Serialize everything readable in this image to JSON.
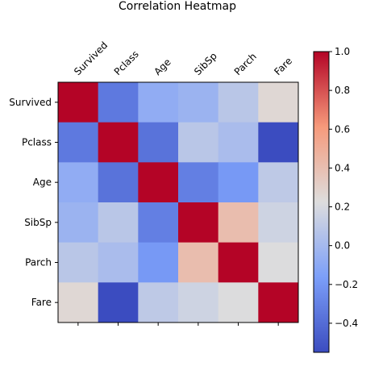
{
  "chart_data": {
    "type": "heatmap",
    "title": "Correlation Heatmap",
    "x_categories": [
      "Survived",
      "Pclass",
      "Age",
      "SibSp",
      "Parch",
      "Fare"
    ],
    "y_categories": [
      "Survived",
      "Pclass",
      "Age",
      "SibSp",
      "Parch",
      "Fare"
    ],
    "values": [
      [
        1.0,
        -0.34,
        -0.08,
        -0.04,
        0.08,
        0.26
      ],
      [
        -0.34,
        1.0,
        -0.37,
        0.08,
        0.02,
        -0.55
      ],
      [
        -0.08,
        -0.37,
        1.0,
        -0.31,
        -0.19,
        0.1
      ],
      [
        -0.04,
        0.08,
        -0.31,
        1.0,
        0.41,
        0.16
      ],
      [
        0.08,
        0.02,
        -0.19,
        0.41,
        1.0,
        0.22
      ],
      [
        0.26,
        -0.55,
        0.1,
        0.16,
        0.22,
        1.0
      ]
    ],
    "colormap": "coolwarm",
    "vmin": -0.55,
    "vmax": 1.0,
    "colorbar_ticks": [
      "-0.4",
      "-0.2",
      "0.0",
      "0.2",
      "0.4",
      "0.6",
      "0.8",
      "1.0"
    ],
    "colorbar_tick_values": [
      -0.4,
      -0.2,
      0.0,
      0.2,
      0.4,
      0.6,
      0.8,
      1.0
    ],
    "grid": false
  }
}
